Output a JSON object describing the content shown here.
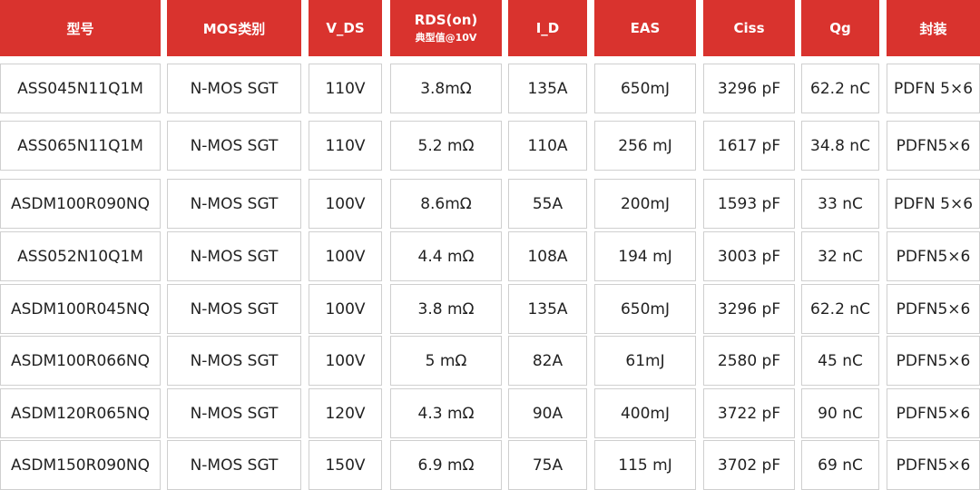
{
  "table": {
    "header": [
      "型号",
      "MOS类别",
      "V_DS",
      {
        "text": "RDS(on)",
        "sub": "典型值@10V"
      },
      "I_D",
      "EAS",
      "Ciss",
      "Qg",
      "封装"
    ],
    "rows": [
      [
        "ASS045N11Q1M",
        "N-MOS SGT",
        "110V",
        "3.8mΩ",
        "135A",
        "650mJ",
        "3296 pF",
        "62.2 nC",
        "PDFN 5×6"
      ],
      [
        "ASS065N11Q1M",
        "N-MOS SGT",
        "110V",
        "5.2 mΩ",
        "110A",
        "256 mJ",
        "1617 pF",
        "34.8 nC",
        "PDFN5×6"
      ],
      [
        "ASDM100R090NQ",
        "N-MOS SGT",
        "100V",
        "8.6mΩ",
        "55A",
        "200mJ",
        "1593 pF",
        "33 nC",
        "PDFN 5×6"
      ],
      [
        "ASS052N10Q1M",
        "N-MOS SGT",
        "100V",
        "4.4 mΩ",
        "108A",
        "194 mJ",
        "3003 pF",
        "32 nC",
        "PDFN5×6"
      ],
      [
        "ASDM100R045NQ",
        "N-MOS SGT",
        "100V",
        "3.8 mΩ",
        "135A",
        "650mJ",
        "3296 pF",
        "62.2 nC",
        "PDFN5×6"
      ],
      [
        "ASDM100R066NQ",
        "N-MOS SGT",
        "100V",
        "5 mΩ",
        "82A",
        "61mJ",
        "2580 pF",
        "45 nC",
        "PDFN5×6"
      ],
      [
        "ASDM120R065NQ",
        "N-MOS SGT",
        "120V",
        "4.3 mΩ",
        "90A",
        "400mJ",
        "3722 pF",
        "90 nC",
        "PDFN5×6"
      ],
      [
        "ASDM150R090NQ",
        "N-MOS SGT",
        "150V",
        "6.9 mΩ",
        "75A",
        "115 mJ",
        "3702 pF",
        "69 nC",
        "PDFN5×6"
      ]
    ]
  }
}
